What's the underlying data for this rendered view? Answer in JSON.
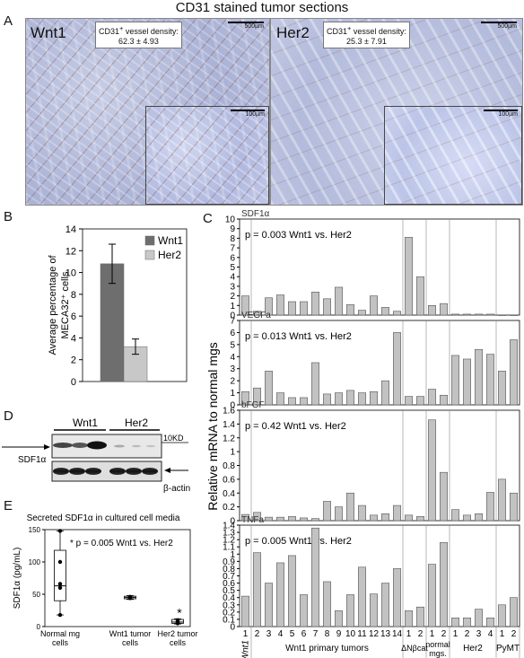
{
  "figure_title": "CD31 stained tumor sections",
  "panel_labels": {
    "a": "A",
    "b": "B",
    "c": "C",
    "d": "D",
    "e": "E"
  },
  "panel_a": {
    "left_tag": "Wnt1",
    "left_density_label": "CD31",
    "left_density_sup": "+",
    "left_density_rest": " vessel density:",
    "left_density_value": "62.3 ± 4.93",
    "right_tag": "Her2",
    "right_density_label": "CD31",
    "right_density_sup": "+",
    "right_density_rest": " vessel density:",
    "right_density_value": "25.3 ± 7.91",
    "scale_big": "500µm",
    "scale_small": "100µm"
  },
  "panel_d": {
    "col_wnt1": "Wnt1",
    "col_her2": "Her2",
    "size_marker": "10KD",
    "sdf_label": "SDF1α",
    "actin_label": "β-actin"
  },
  "chart_data": [
    {
      "id": "B",
      "type": "bar",
      "ylabel_lines": [
        "Average percentage of",
        "MECA32⁺ cells"
      ],
      "ylim": [
        0,
        14
      ],
      "yticks": [
        0,
        2,
        4,
        6,
        8,
        10,
        12,
        14
      ],
      "legend": [
        "Wnt1",
        "Her2"
      ],
      "legend_position": "top-right",
      "series": [
        {
          "name": "Wnt1",
          "value": 10.8,
          "error": 1.8,
          "color": "#6e6e6e"
        },
        {
          "name": "Her2",
          "value": 3.2,
          "error": 0.7,
          "color": "#c8c8c8"
        }
      ]
    },
    {
      "id": "C",
      "type": "bar",
      "ylabel": "Relative mRNA to normal mgs",
      "x_tick_labels": [
        "1",
        "2",
        "3",
        "4",
        "5",
        "6",
        "7",
        "8",
        "9",
        "10",
        "11",
        "12",
        "13",
        "14",
        "1",
        "2",
        "1",
        "2",
        "1",
        "2",
        "3",
        "4",
        "1",
        "2"
      ],
      "group_labels": [
        "Wnt1",
        "Wnt1 primary tumors",
        "ΔNβcat",
        "normal mgs.",
        "Her2",
        "PyMT"
      ],
      "subpanels": [
        {
          "gene": "SDF1α",
          "annotation": "p = 0.003 Wnt1 vs. Her2",
          "ylim": [
            0,
            10
          ],
          "yticks": [
            0,
            1,
            2,
            3,
            4,
            5,
            6,
            7,
            8,
            9,
            10
          ],
          "values": [
            2.0,
            0.4,
            1.8,
            2.1,
            1.4,
            1.4,
            2.4,
            1.7,
            2.9,
            1.1,
            0.5,
            2.0,
            0.8,
            0.4,
            8.1,
            4.0,
            1.0,
            1.2,
            0.1,
            0.1,
            0.1,
            0.1,
            0,
            0
          ]
        },
        {
          "gene": "VEGFa",
          "annotation": "p = 0.013 Wnt1 vs. Her2",
          "ylim": [
            0,
            7
          ],
          "yticks": [
            0,
            1,
            2,
            3,
            4,
            5,
            6,
            7
          ],
          "values": [
            1.1,
            1.4,
            2.8,
            1.0,
            0.6,
            0.6,
            3.5,
            0.9,
            1.0,
            1.2,
            1.0,
            1.1,
            2.0,
            6.0,
            0.7,
            0.7,
            1.3,
            0.8,
            4.1,
            3.8,
            4.6,
            4.2,
            2.8,
            5.4
          ]
        },
        {
          "gene": "bFGF",
          "annotation": "p = 0.42 Wnt1 vs. Her2",
          "ylim": [
            0,
            1.6
          ],
          "yticks": [
            0,
            0.2,
            0.4,
            0.6,
            0.8,
            1,
            1.2,
            1.4,
            1.6
          ],
          "values": [
            0.09,
            0.12,
            0.05,
            0.05,
            0.06,
            0.04,
            0.03,
            0.28,
            0.2,
            0.4,
            0.22,
            0.08,
            0.1,
            0.22,
            0.08,
            0.06,
            1.46,
            0.7,
            0.16,
            0.08,
            0.1,
            0.41,
            0.6,
            0.4
          ]
        },
        {
          "gene": "TNFa",
          "annotation": "p = 0.005 Wnt1 vs. Her2",
          "ylim": [
            0,
            1.4
          ],
          "yticks": [
            0,
            0.1,
            0.2,
            0.3,
            0.4,
            0.5,
            0.6,
            0.7,
            0.8,
            0.9,
            1,
            1.1,
            1.2,
            1.3,
            1.4
          ],
          "values": [
            0.42,
            1.02,
            0.6,
            0.88,
            0.98,
            0.44,
            1.36,
            0.62,
            0.22,
            0.44,
            0.82,
            0.45,
            0.6,
            0.8,
            0.22,
            0.27,
            0.86,
            1.16,
            0.12,
            0.12,
            0.24,
            0.12,
            0.3,
            0.4
          ]
        }
      ]
    },
    {
      "id": "E",
      "type": "box",
      "title": "Secreted SDF1α in cultured cell media",
      "ylabel": "SDF1α (pg/mL)",
      "ylim": [
        0,
        150
      ],
      "yticks": [
        0,
        50,
        100,
        150
      ],
      "annotation": "* p = 0.005 Wnt1 vs. Her2",
      "categories": [
        "Normal mg cells",
        "Wnt1 tumor cells",
        "Her2 tumor cells"
      ],
      "category_lines": [
        [
          "Normal mg",
          "cells"
        ],
        [
          "Wnt1 tumor",
          "cells"
        ],
        [
          "Her2 tumor",
          "cells"
        ]
      ],
      "groups": [
        {
          "name": "Normal mg cells",
          "min": 18,
          "q1": 40,
          "median": 63,
          "q3": 118,
          "max": 148,
          "points": [
            148,
            100,
            66,
            60,
            18
          ]
        },
        {
          "name": "Wnt1 tumor cells",
          "min": 42,
          "q1": 43,
          "median": 45,
          "q3": 47,
          "max": 48,
          "points": [
            46,
            45,
            44
          ]
        },
        {
          "name": "Her2 tumor cells",
          "min": 4,
          "q1": 5,
          "median": 7,
          "q3": 11,
          "max": 12,
          "points": [
            10,
            8,
            6,
            5
          ],
          "star": "*"
        }
      ]
    }
  ]
}
